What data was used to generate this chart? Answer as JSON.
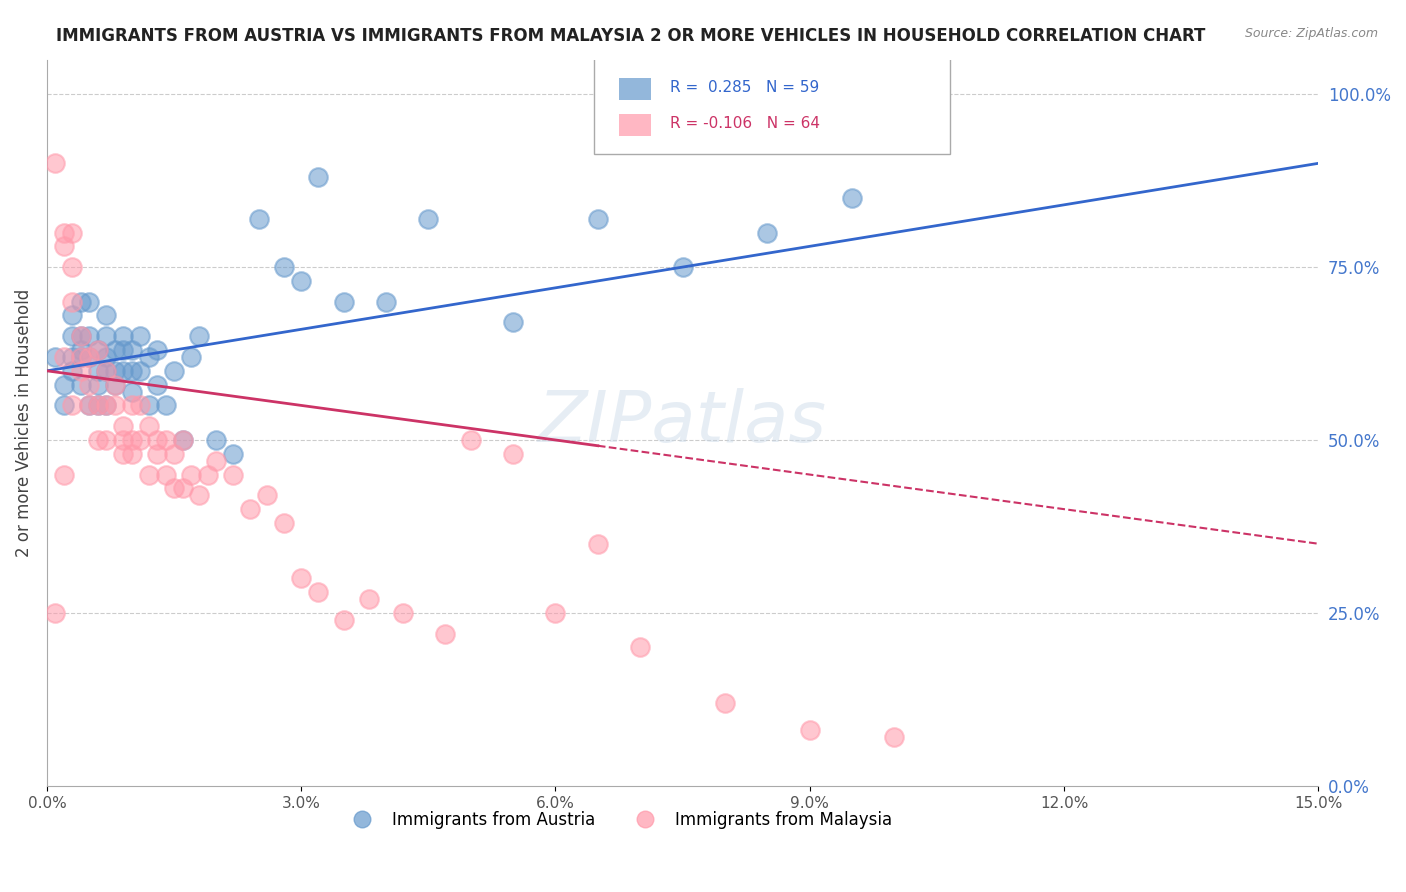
{
  "title": "IMMIGRANTS FROM AUSTRIA VS IMMIGRANTS FROM MALAYSIA 2 OR MORE VEHICLES IN HOUSEHOLD CORRELATION CHART",
  "source": "Source: ZipAtlas.com",
  "ylabel": "2 or more Vehicles in Household",
  "austria_R": 0.285,
  "austria_N": 59,
  "malaysia_R": -0.106,
  "malaysia_N": 64,
  "austria_color": "#6699cc",
  "malaysia_color": "#ff99aa",
  "trend_austria_color": "#3366cc",
  "trend_malaysia_color": "#cc3366",
  "background": "#ffffff",
  "grid_color": "#cccccc",
  "right_axis_color": "#4477cc",
  "right_yticks": [
    0.0,
    0.25,
    0.5,
    0.75,
    1.0
  ],
  "right_yticklabels": [
    "0.0%",
    "25.0%",
    "50.0%",
    "75.0%",
    "100.0%"
  ],
  "xlim": [
    0.0,
    0.15
  ],
  "ylim": [
    0.0,
    1.05
  ],
  "austria_x": [
    0.001,
    0.002,
    0.002,
    0.003,
    0.003,
    0.003,
    0.003,
    0.004,
    0.004,
    0.004,
    0.004,
    0.004,
    0.005,
    0.005,
    0.005,
    0.005,
    0.006,
    0.006,
    0.006,
    0.006,
    0.007,
    0.007,
    0.007,
    0.007,
    0.007,
    0.008,
    0.008,
    0.008,
    0.009,
    0.009,
    0.009,
    0.01,
    0.01,
    0.01,
    0.011,
    0.011,
    0.012,
    0.012,
    0.013,
    0.013,
    0.014,
    0.015,
    0.016,
    0.017,
    0.018,
    0.02,
    0.022,
    0.025,
    0.028,
    0.03,
    0.032,
    0.035,
    0.04,
    0.045,
    0.055,
    0.065,
    0.075,
    0.085,
    0.095
  ],
  "austria_y": [
    0.62,
    0.58,
    0.55,
    0.62,
    0.6,
    0.65,
    0.68,
    0.58,
    0.62,
    0.65,
    0.7,
    0.63,
    0.55,
    0.62,
    0.65,
    0.7,
    0.58,
    0.6,
    0.63,
    0.55,
    0.6,
    0.62,
    0.65,
    0.68,
    0.55,
    0.6,
    0.63,
    0.58,
    0.63,
    0.65,
    0.6,
    0.57,
    0.6,
    0.63,
    0.6,
    0.65,
    0.55,
    0.62,
    0.58,
    0.63,
    0.55,
    0.6,
    0.5,
    0.62,
    0.65,
    0.5,
    0.48,
    0.82,
    0.75,
    0.73,
    0.88,
    0.7,
    0.7,
    0.82,
    0.67,
    0.82,
    0.75,
    0.8,
    0.85
  ],
  "malaysia_x": [
    0.001,
    0.002,
    0.002,
    0.002,
    0.003,
    0.003,
    0.003,
    0.003,
    0.004,
    0.004,
    0.004,
    0.005,
    0.005,
    0.005,
    0.006,
    0.006,
    0.006,
    0.007,
    0.007,
    0.007,
    0.008,
    0.008,
    0.009,
    0.009,
    0.009,
    0.01,
    0.01,
    0.01,
    0.011,
    0.011,
    0.012,
    0.012,
    0.013,
    0.013,
    0.014,
    0.014,
    0.015,
    0.015,
    0.016,
    0.016,
    0.017,
    0.018,
    0.019,
    0.02,
    0.022,
    0.024,
    0.026,
    0.028,
    0.03,
    0.032,
    0.035,
    0.038,
    0.042,
    0.047,
    0.055,
    0.065,
    0.05,
    0.06,
    0.07,
    0.08,
    0.09,
    0.1,
    0.001,
    0.002
  ],
  "malaysia_y": [
    0.9,
    0.78,
    0.8,
    0.62,
    0.8,
    0.75,
    0.7,
    0.55,
    0.62,
    0.65,
    0.6,
    0.62,
    0.58,
    0.55,
    0.63,
    0.55,
    0.5,
    0.6,
    0.55,
    0.5,
    0.55,
    0.58,
    0.5,
    0.52,
    0.48,
    0.55,
    0.5,
    0.48,
    0.55,
    0.5,
    0.45,
    0.52,
    0.5,
    0.48,
    0.5,
    0.45,
    0.48,
    0.43,
    0.5,
    0.43,
    0.45,
    0.42,
    0.45,
    0.47,
    0.45,
    0.4,
    0.42,
    0.38,
    0.3,
    0.28,
    0.24,
    0.27,
    0.25,
    0.22,
    0.48,
    0.35,
    0.5,
    0.25,
    0.2,
    0.12,
    0.08,
    0.07,
    0.25,
    0.45
  ]
}
